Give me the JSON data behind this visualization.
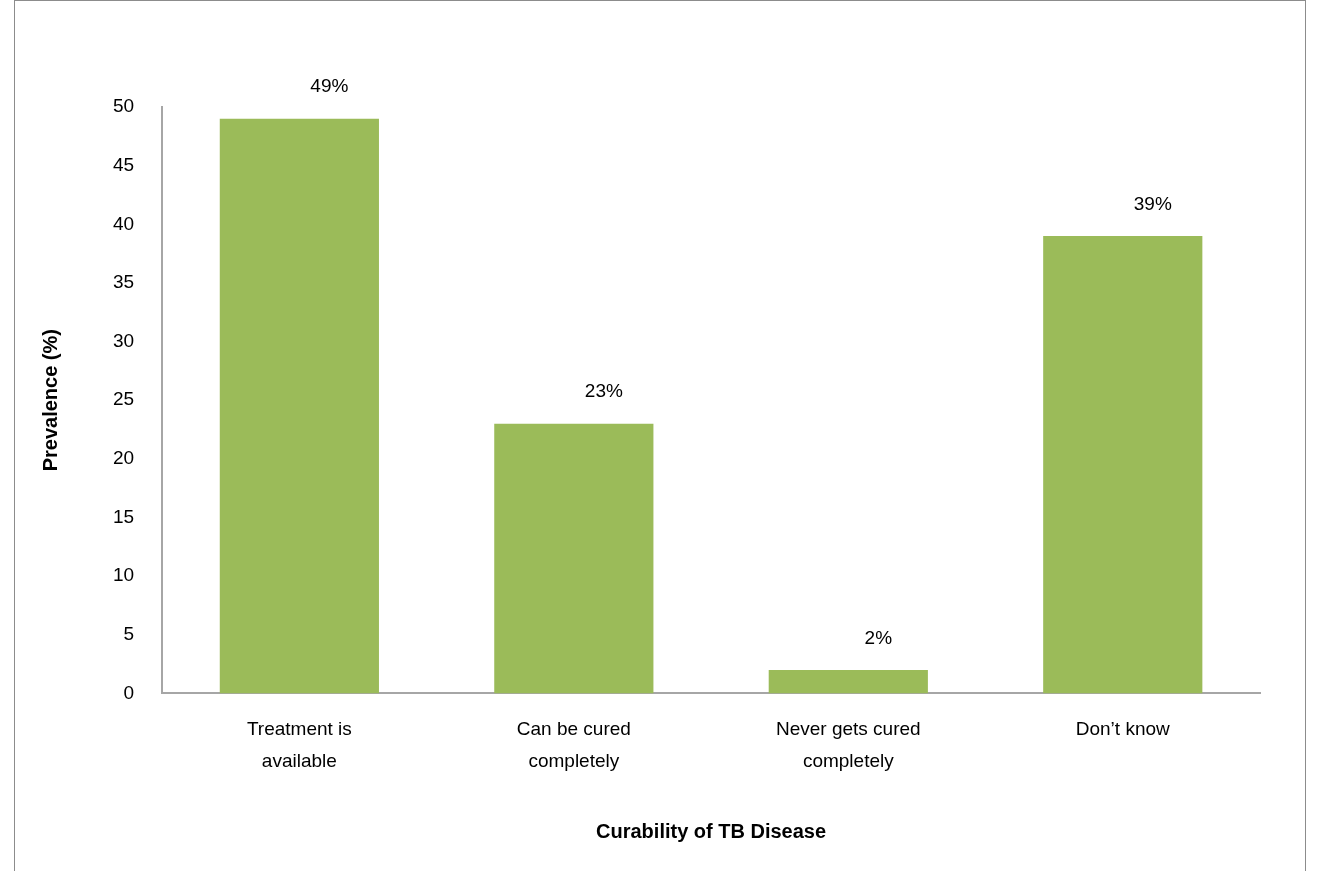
{
  "chart_data": {
    "type": "bar",
    "categories": [
      "Treatment is available",
      "Can be cured completely",
      "Never gets cured completely",
      "Don’t know"
    ],
    "values": [
      49,
      23,
      2,
      39
    ],
    "color": "#9bbb59",
    "value_labels": [
      "49%",
      "23%",
      "2%",
      "39%"
    ],
    "xlabel": "Curability of TB Disease",
    "ylabel": "Prevalence (%)",
    "ylim": [
      0,
      50
    ],
    "yticks": [
      0,
      5,
      10,
      15,
      20,
      25,
      30,
      35,
      40,
      45,
      50
    ],
    "grid": false,
    "legend": false
  }
}
